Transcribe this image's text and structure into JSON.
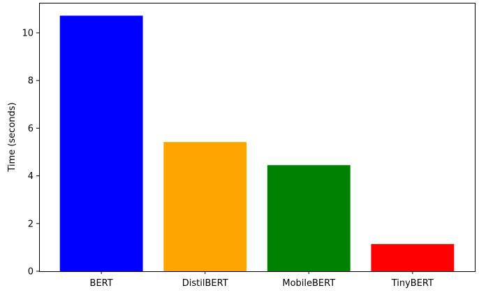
{
  "chart_data": {
    "type": "bar",
    "title": "",
    "xlabel": "",
    "ylabel": "Time (seconds)",
    "categories": [
      "BERT",
      "DistilBERT",
      "MobileBERT",
      "TinyBERT"
    ],
    "values": [
      10.72,
      5.42,
      4.45,
      1.14
    ],
    "colors": [
      "#0000ff",
      "#ffa500",
      "#008000",
      "#ff0000"
    ],
    "ylim": [
      0,
      11.26
    ],
    "yticks": [
      0,
      2,
      4,
      6,
      8,
      10
    ],
    "grid": false,
    "legend": "none"
  }
}
